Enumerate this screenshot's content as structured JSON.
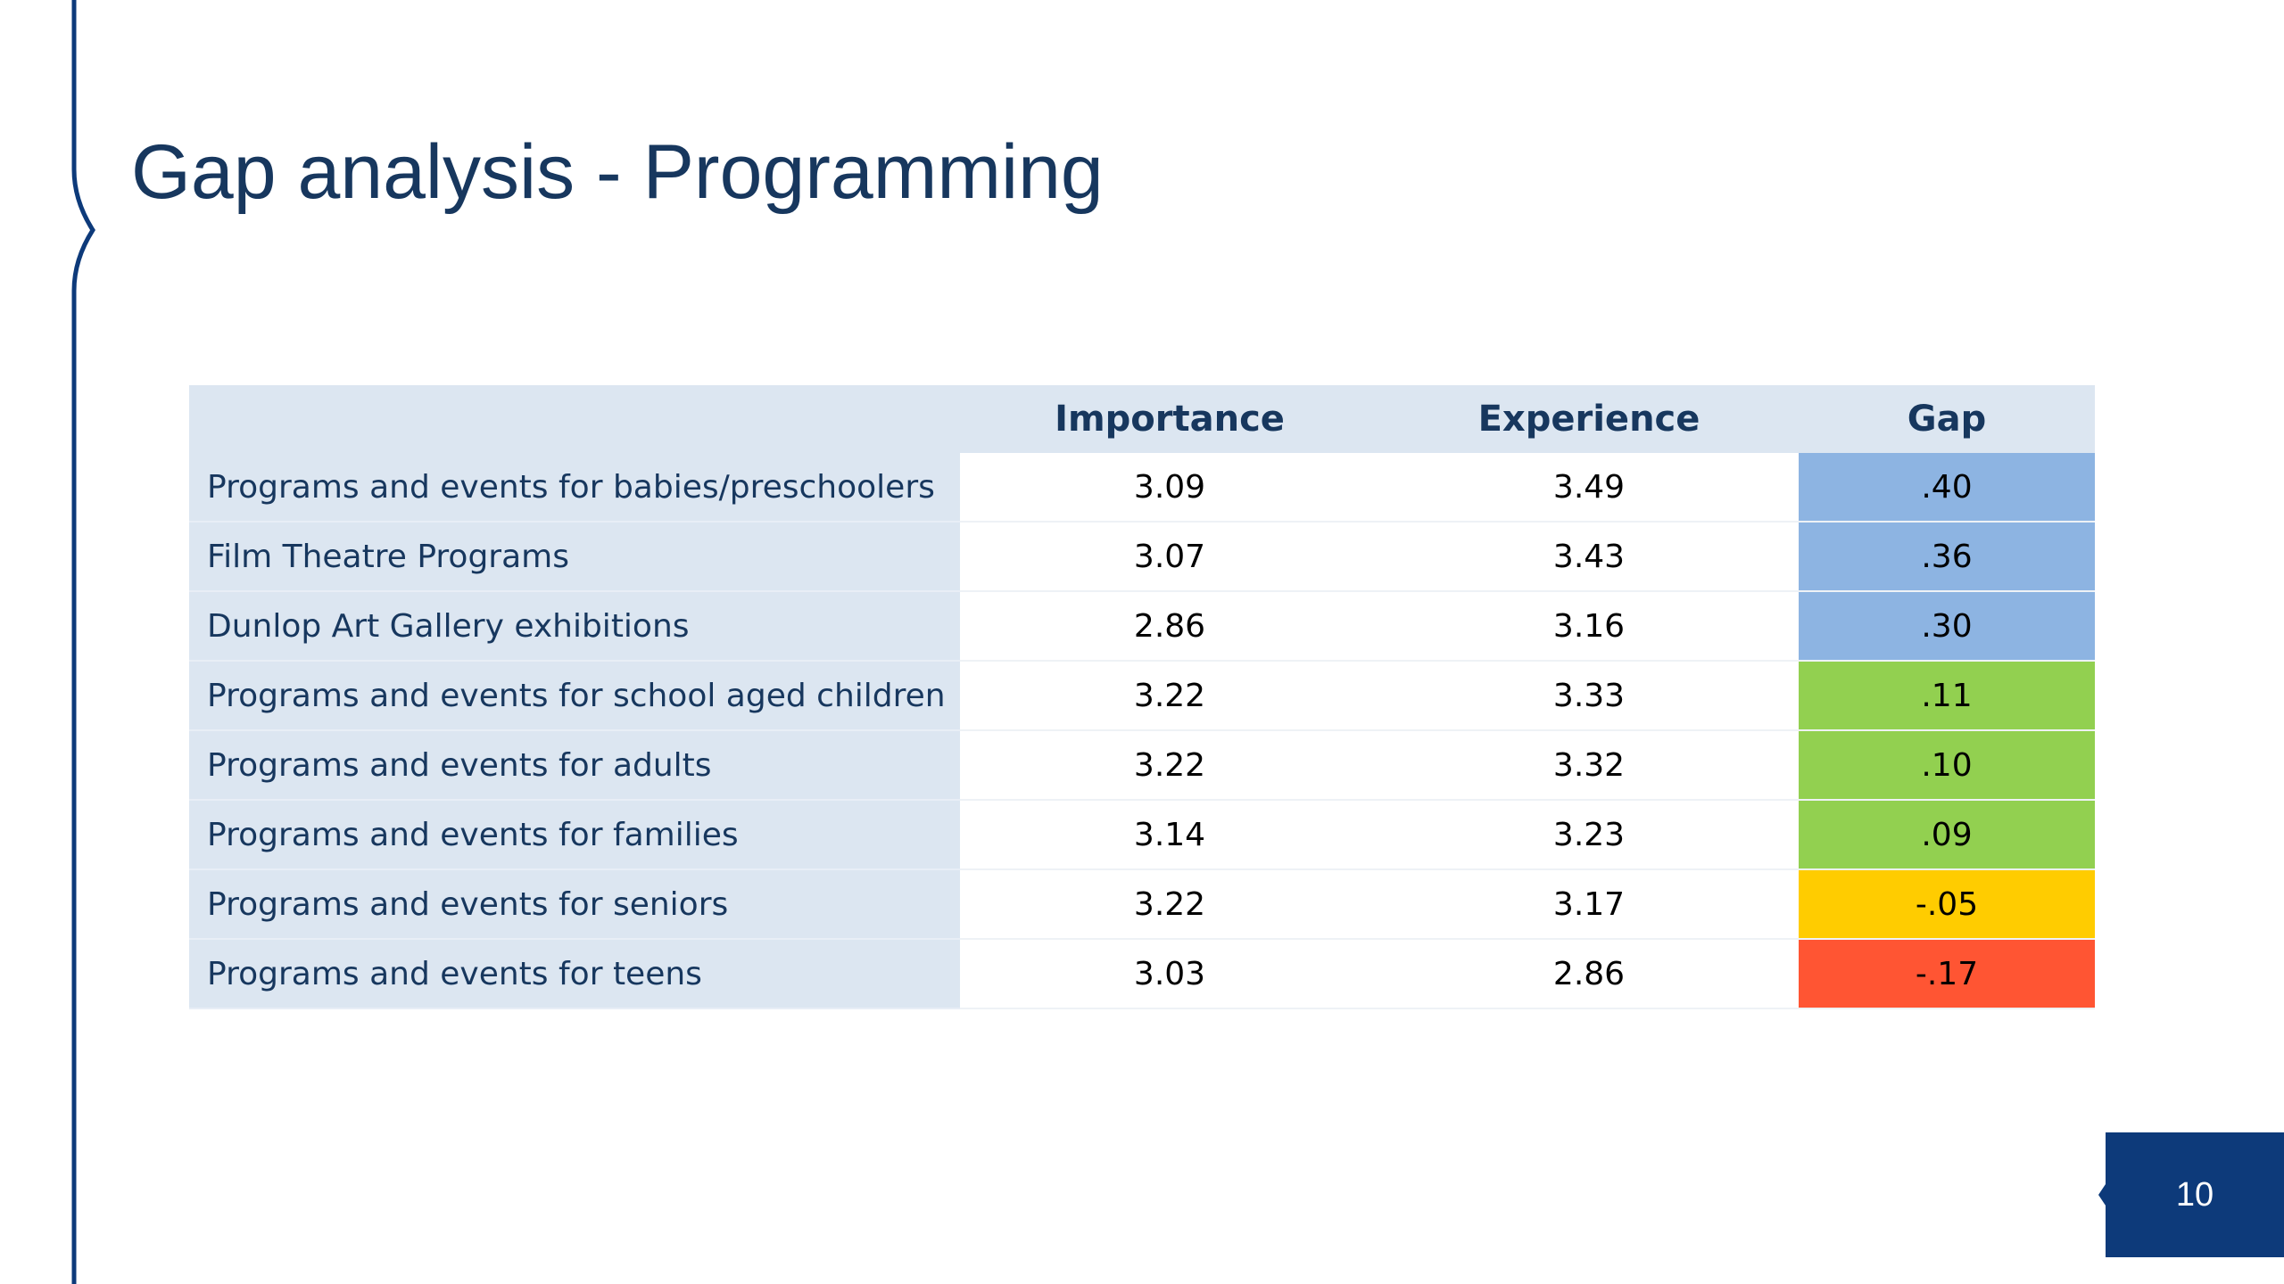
{
  "slide": {
    "title": "Gap analysis - Programming",
    "page_number": "10",
    "accent_color": "#0d3a7a",
    "title_color": "#17375e"
  },
  "table": {
    "headers": [
      "",
      "Importance",
      "Experience",
      "Gap"
    ],
    "header_bg": "#dce6f1",
    "rows": [
      {
        "label": "Programs and events for babies/preschoolers",
        "importance": "3.09",
        "experience": "3.49",
        "gap": ".40",
        "gap_color": "#8db4e2"
      },
      {
        "label": "Film Theatre Programs",
        "importance": "3.07",
        "experience": "3.43",
        "gap": ".36",
        "gap_color": "#8db4e2"
      },
      {
        "label": "Dunlop Art Gallery exhibitions",
        "importance": "2.86",
        "experience": "3.16",
        "gap": ".30",
        "gap_color": "#8db4e2"
      },
      {
        "label": "Programs and events for school aged children",
        "importance": "3.22",
        "experience": "3.33",
        "gap": ".11",
        "gap_color": "#92d050"
      },
      {
        "label": "Programs and events for adults",
        "importance": "3.22",
        "experience": "3.32",
        "gap": ".10",
        "gap_color": "#92d050"
      },
      {
        "label": "Programs and events for families",
        "importance": "3.14",
        "experience": "3.23",
        "gap": ".09",
        "gap_color": "#92d050"
      },
      {
        "label": "Programs and events for seniors",
        "importance": "3.22",
        "experience": "3.17",
        "gap": "-.05",
        "gap_color": "#ffcc00"
      },
      {
        "label": "Programs and events for teens",
        "importance": "3.03",
        "experience": "2.86",
        "gap": "-.17",
        "gap_color": "#ff5533"
      }
    ]
  }
}
